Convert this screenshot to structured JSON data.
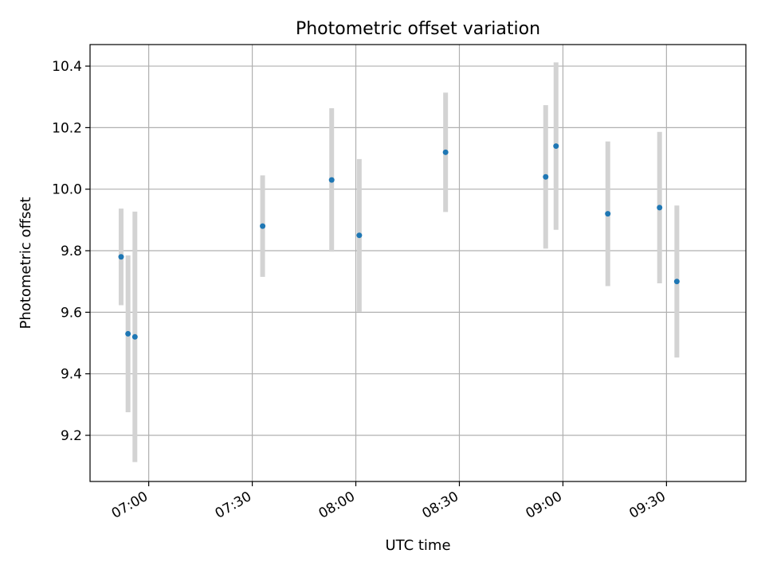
{
  "chart_data": {
    "type": "scatter",
    "title": "Photometric offset variation",
    "xlabel": "UTC time",
    "ylabel": "Photometric offset",
    "x_ticks": [
      "07:00",
      "07:30",
      "08:00",
      "08:30",
      "09:00",
      "09:30"
    ],
    "y_ticks": [
      "9.2",
      "9.4",
      "9.6",
      "9.8",
      "10.0",
      "10.2",
      "10.4"
    ],
    "xlim": [
      "06:43",
      "09:53"
    ],
    "ylim": [
      9.05,
      10.47
    ],
    "grid": true,
    "points": [
      {
        "time": "06:52",
        "value": 9.78,
        "error": 0.157
      },
      {
        "time": "06:54",
        "value": 9.53,
        "error": 0.255
      },
      {
        "time": "06:56",
        "value": 9.52,
        "error": 0.407
      },
      {
        "time": "07:33",
        "value": 9.88,
        "error": 0.165
      },
      {
        "time": "07:53",
        "value": 10.03,
        "error": 0.233
      },
      {
        "time": "08:01",
        "value": 9.85,
        "error": 0.248
      },
      {
        "time": "08:26",
        "value": 10.12,
        "error": 0.194
      },
      {
        "time": "08:55",
        "value": 10.04,
        "error": 0.233
      },
      {
        "time": "08:58",
        "value": 10.14,
        "error": 0.272
      },
      {
        "time": "09:13",
        "value": 9.92,
        "error": 0.235
      },
      {
        "time": "09:28",
        "value": 9.94,
        "error": 0.246
      },
      {
        "time": "09:33",
        "value": 9.7,
        "error": 0.247
      }
    ],
    "colors": {
      "marker": "#1f77b4",
      "errorbar": "#d3d3d3",
      "grid": "#b0b0b0",
      "axes": "#000000"
    }
  }
}
